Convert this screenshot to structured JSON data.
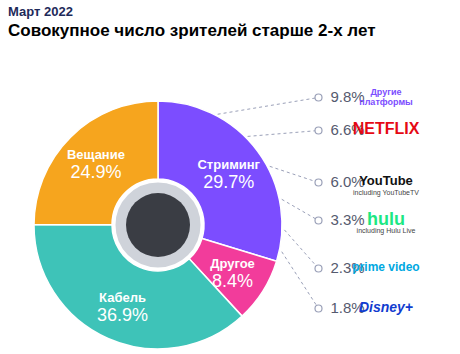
{
  "chart_data": {
    "type": "pie",
    "title": "Март 2022",
    "subtitle": "Совокупное число зрителей старше 2-х лет",
    "categories": [
      "Стриминг",
      "Другое",
      "Кабель",
      "Вещание"
    ],
    "values": [
      29.7,
      8.4,
      36.9,
      24.9
    ],
    "value_labels": [
      "29.7%",
      "8.4%",
      "36.9%",
      "24.9%"
    ],
    "colors": [
      "#7c4dff",
      "#f23c9b",
      "#3ec3b8",
      "#f6a51e"
    ],
    "data_labels": true,
    "breakdown": {
      "of": "Стриминг",
      "categories": [
        "Другие платформы",
        "NETFLIX",
        "YouTube",
        "hulu",
        "prime video",
        "Disney+"
      ],
      "notes": [
        null,
        null,
        "including YouTubeTV",
        null,
        null,
        null
      ],
      "notes_below": [
        null,
        null,
        null,
        "including Hulu Live",
        null,
        null
      ],
      "values": [
        9.8,
        6.6,
        6.0,
        3.3,
        2.3,
        1.8
      ],
      "value_labels": [
        "9.8%",
        "6.6%",
        "6.0%",
        "3.3%",
        "2.3%",
        "1.8%"
      ],
      "colors": [
        "#7c4dff",
        "#e50914",
        "#111111",
        "#1ce783",
        "#00a8e1",
        "#113ccf"
      ]
    }
  }
}
